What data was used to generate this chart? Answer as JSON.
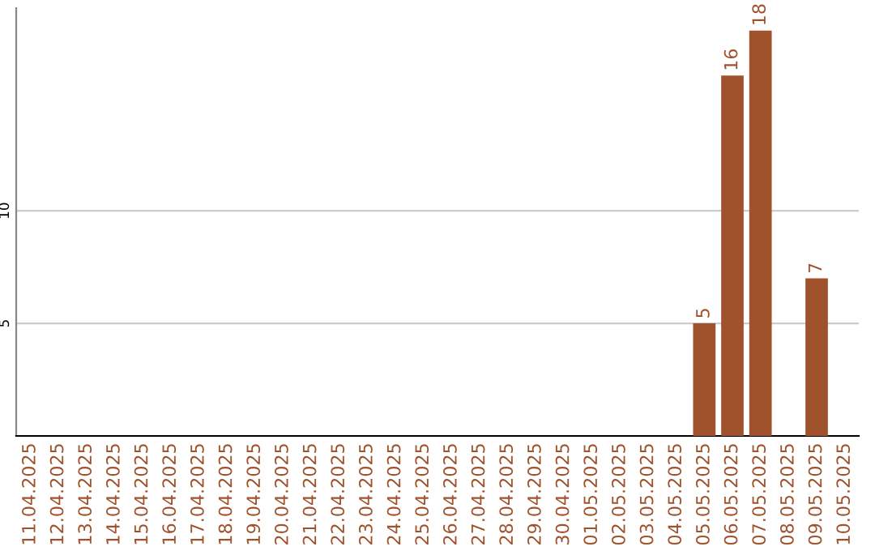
{
  "chart_data": {
    "type": "bar",
    "categories": [
      "11.04.2025",
      "12.04.2025",
      "13.04.2025",
      "14.04.2025",
      "15.04.2025",
      "16.04.2025",
      "17.04.2025",
      "18.04.2025",
      "19.04.2025",
      "20.04.2025",
      "21.04.2025",
      "22.04.2025",
      "23.04.2025",
      "24.04.2025",
      "25.04.2025",
      "26.04.2025",
      "27.04.2025",
      "28.04.2025",
      "29.04.2025",
      "30.04.2025",
      "01.05.2025",
      "02.05.2025",
      "03.05.2025",
      "04.05.2025",
      "05.05.2025",
      "06.05.2025",
      "07.05.2025",
      "08.05.2025",
      "09.05.2025",
      "10.05.2025"
    ],
    "values": [
      0,
      0,
      0,
      0,
      0,
      0,
      0,
      0,
      0,
      0,
      0,
      0,
      0,
      0,
      0,
      0,
      0,
      0,
      0,
      0,
      0,
      0,
      0,
      0,
      5,
      16,
      18,
      0,
      7,
      0
    ],
    "value_labels": [
      null,
      null,
      null,
      null,
      null,
      null,
      null,
      null,
      null,
      null,
      null,
      null,
      null,
      null,
      null,
      null,
      null,
      null,
      null,
      null,
      null,
      null,
      null,
      null,
      "5",
      "16",
      "18",
      null,
      "7",
      null
    ],
    "color": "#a0522d",
    "ylim": [
      0,
      19
    ],
    "yticks": [
      5,
      10
    ],
    "grid": "y",
    "legend": false
  }
}
